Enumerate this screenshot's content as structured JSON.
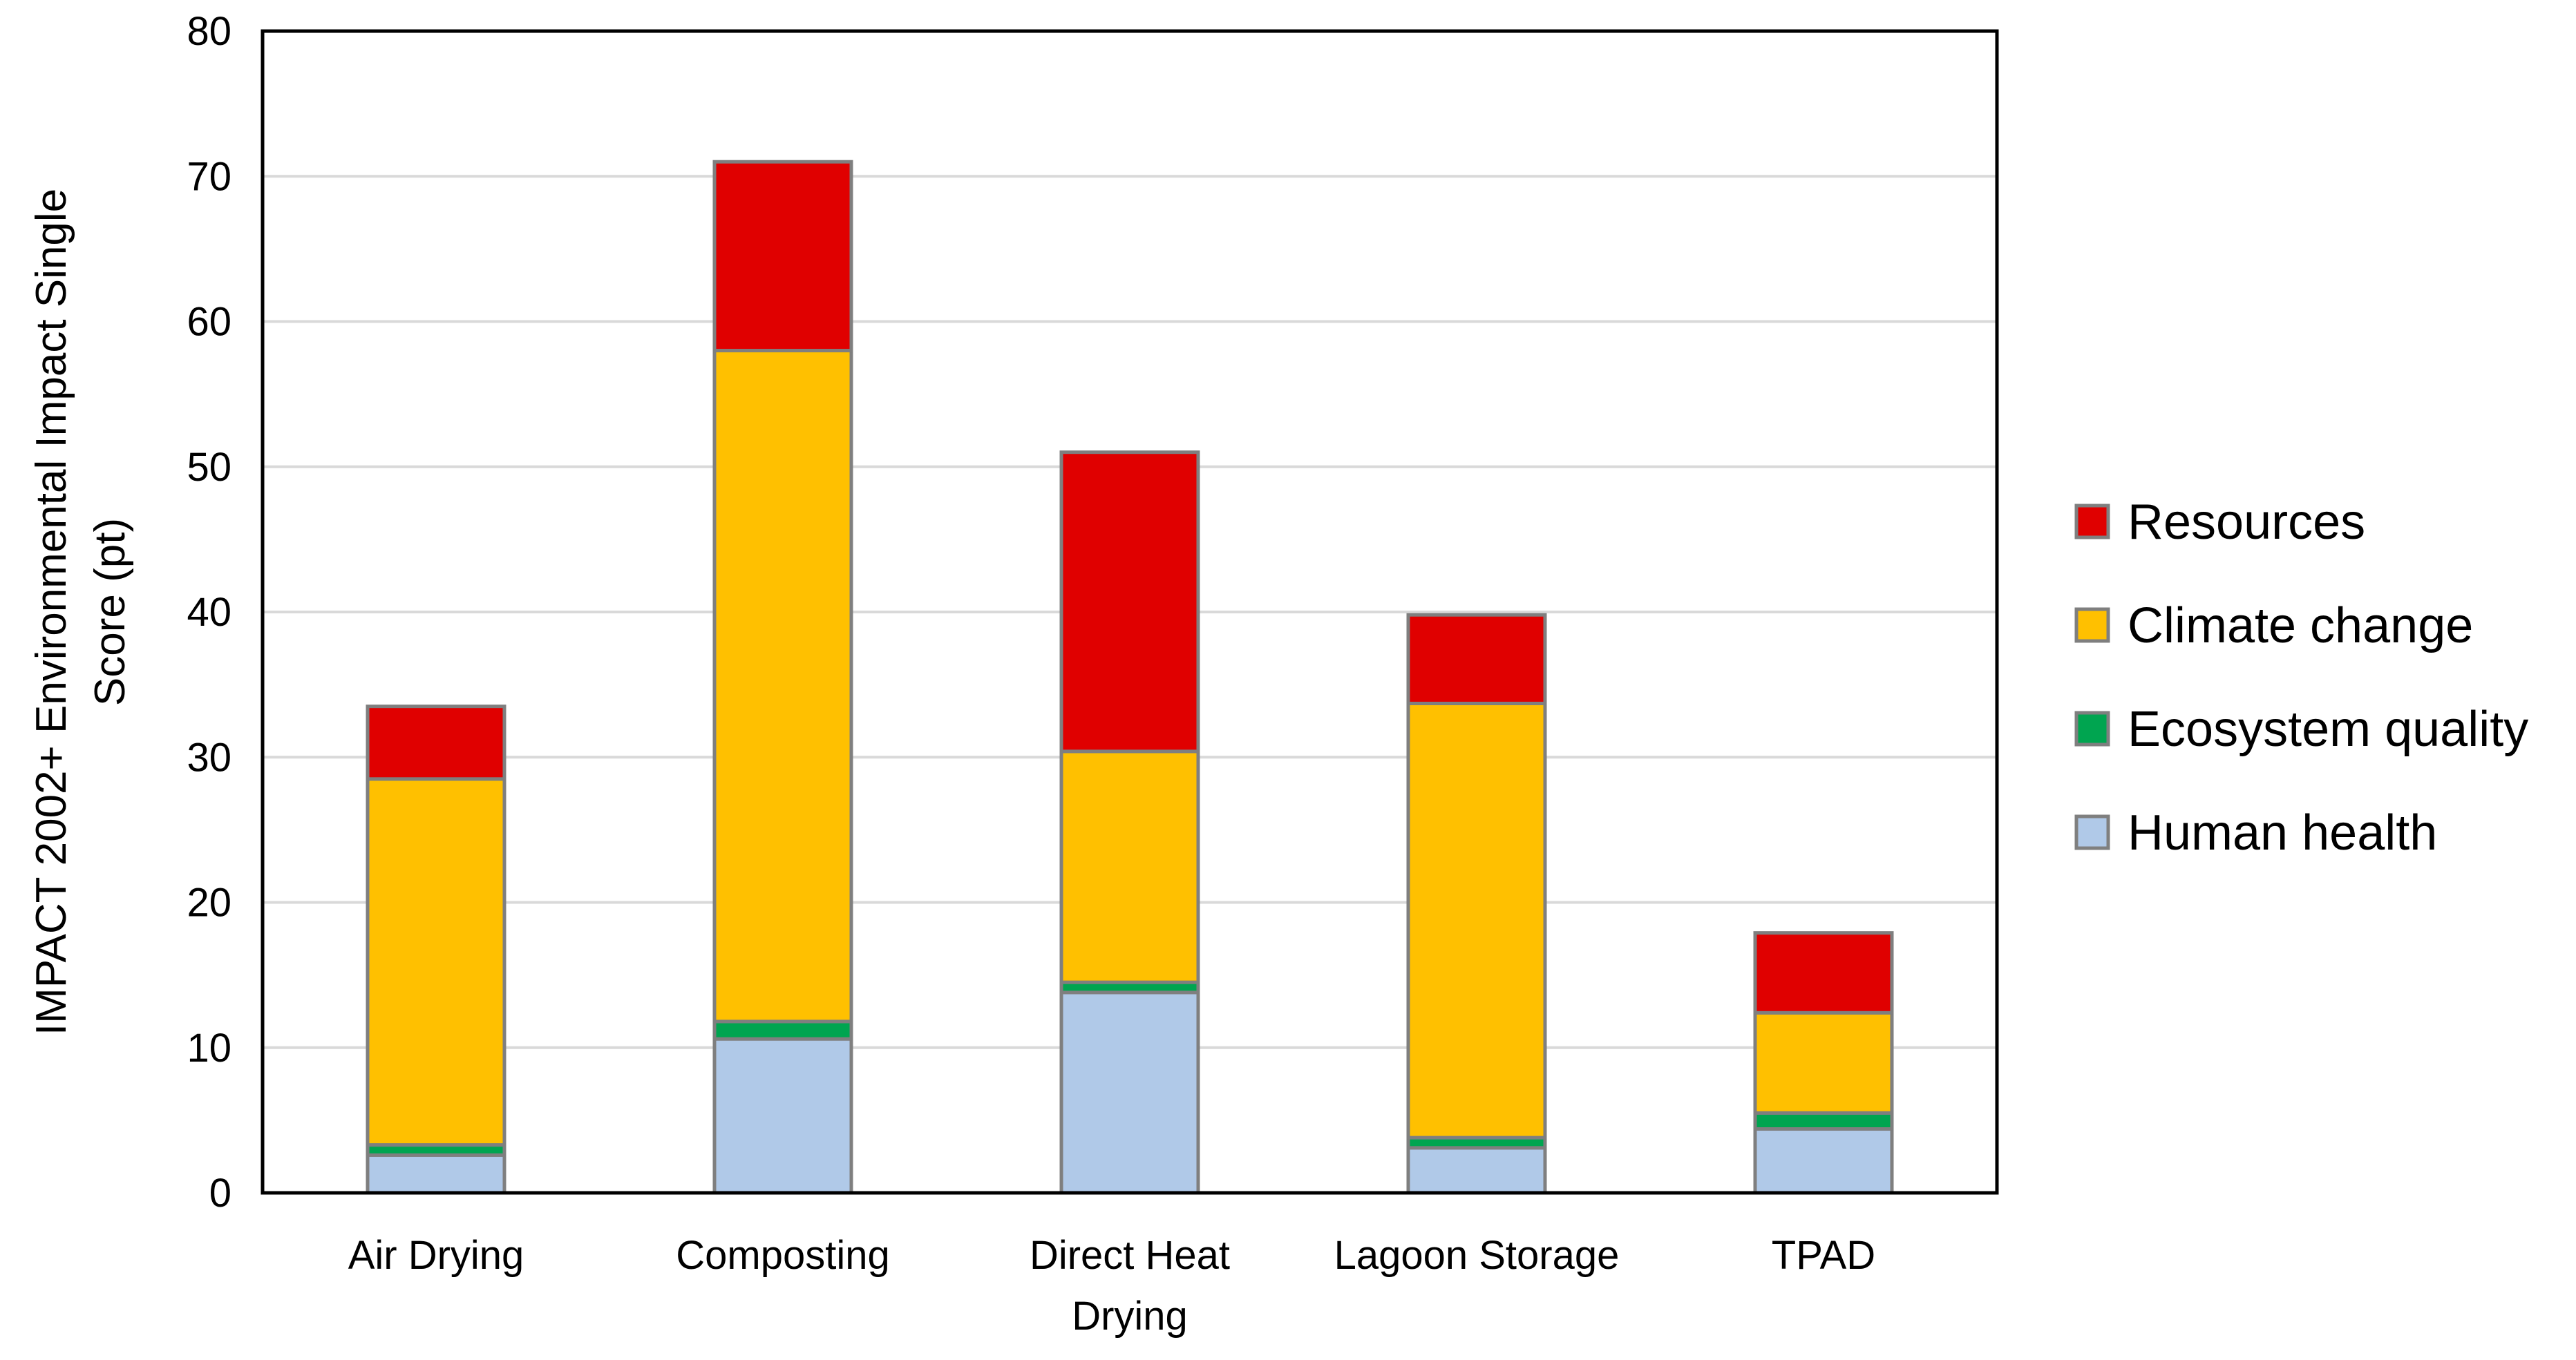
{
  "chart_data": {
    "type": "bar",
    "stacked": true,
    "title": "",
    "xlabel": "",
    "ylabel": "IMPACT 2002+ Environmental Impact Single Score (pt)",
    "ylabel_lines": [
      "IMPACT 2002+ Environmental Impact Single",
      "Score (pt)"
    ],
    "ylim": [
      0,
      80
    ],
    "yticks": [
      0,
      10,
      20,
      30,
      40,
      50,
      60,
      70,
      80
    ],
    "grid": true,
    "legend_position": "right",
    "categories": [
      "Air Drying",
      "Composting",
      "Direct Heat Drying",
      "Lagoon Storage",
      "TPAD"
    ],
    "category_label_lines": [
      [
        "Air Drying"
      ],
      [
        "Composting"
      ],
      [
        "Direct Heat",
        "Drying"
      ],
      [
        "Lagoon Storage"
      ],
      [
        "TPAD"
      ]
    ],
    "series": [
      {
        "name": "Human health",
        "color": "#b0c9e8",
        "values": [
          2.6,
          10.6,
          13.8,
          3.1,
          4.4
        ]
      },
      {
        "name": "Ecosystem quality",
        "color": "#00a550",
        "values": [
          0.7,
          1.2,
          0.7,
          0.7,
          1.1
        ]
      },
      {
        "name": "Climate change",
        "color": "#ffc000",
        "values": [
          25.2,
          46.2,
          15.9,
          29.9,
          6.9
        ]
      },
      {
        "name": "Resources",
        "color": "#e00000",
        "values": [
          5.0,
          13.0,
          20.6,
          6.1,
          5.5
        ]
      }
    ],
    "legend_order": [
      "Resources",
      "Climate change",
      "Ecosystem quality",
      "Human health"
    ]
  },
  "colors": {
    "bar_outline": "#7f7f7f",
    "gridline": "#d9d9d9",
    "axis": "#000000"
  }
}
